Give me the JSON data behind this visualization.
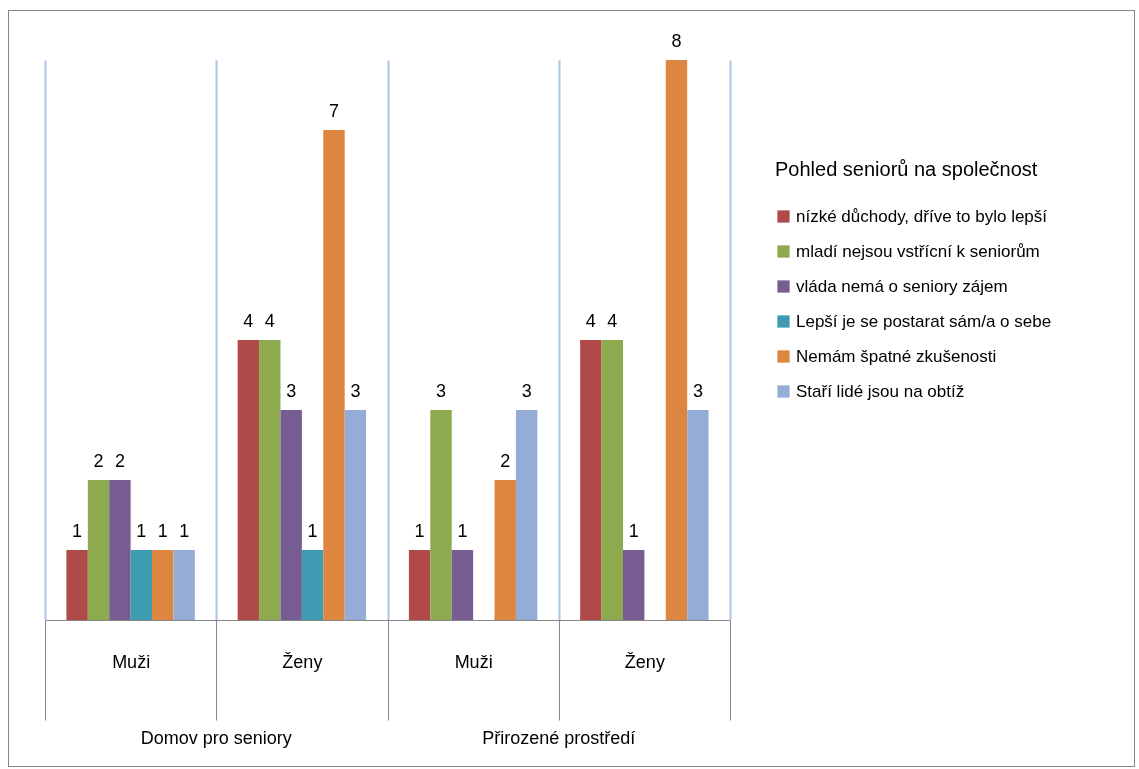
{
  "chart_data": {
    "type": "bar",
    "categories": [
      "Muži",
      "Ženy",
      "Muži",
      "Ženy"
    ],
    "annotations": [
      "Domov pro seniory",
      "Přirozené prostředí"
    ],
    "legend_title": "Pohled seniorů na společnost",
    "series": [
      {
        "name": "nízké důchody, dříve to bylo lepší",
        "color": "#b04a48",
        "values": [
          1,
          4,
          1,
          4
        ]
      },
      {
        "name": "mladí  nejsou vstřícní k seniorům",
        "color": "#8daa4f",
        "values": [
          2,
          4,
          3,
          4
        ]
      },
      {
        "name": "vláda nemá o seniory zájem",
        "color": "#775c91",
        "values": [
          2,
          3,
          1,
          1
        ]
      },
      {
        "name": "Lepší je se postarat sám/a o sebe",
        "color": "#3f9bb1",
        "values": [
          1,
          1,
          null,
          null
        ]
      },
      {
        "name": "Nemám špatné zkušenosti",
        "color": "#dc8640",
        "values": [
          1,
          7,
          2,
          8
        ]
      },
      {
        "name": "Staří lidé jsou na obtíž",
        "color": "#95acd6",
        "values": [
          1,
          3,
          3,
          3
        ]
      }
    ],
    "data_labels": true,
    "grid": "x",
    "legend": "right",
    "tick_labels": "x"
  }
}
